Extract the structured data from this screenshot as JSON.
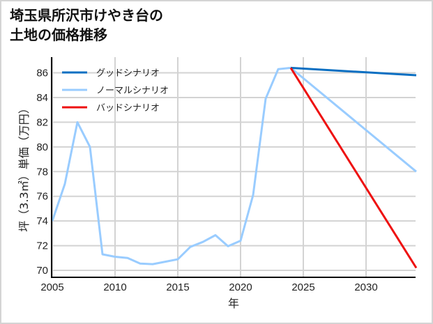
{
  "title_lines": [
    "埼玉県所沢市けやき台の",
    "土地の価格推移"
  ],
  "colors": {
    "good": "#0a6fc2",
    "normal": "#99ccff",
    "bad": "#ee1111",
    "grid": "#d3d3d3",
    "axis": "#000000",
    "frame": "#d4d4d4"
  },
  "chart_data": {
    "type": "line",
    "title": "埼玉県所沢市けやき台の土地の価格推移",
    "xlabel": "年",
    "ylabel": "坪（3.3㎡）単価（万円）",
    "xlim": [
      2005,
      2034
    ],
    "ylim": [
      69.4,
      87.4
    ],
    "x_ticks": [
      2005,
      2010,
      2015,
      2020,
      2025,
      2030
    ],
    "y_ticks": [
      70,
      72,
      74,
      76,
      78,
      80,
      82,
      84,
      86
    ],
    "grid": true,
    "legend_position": "upper left",
    "series": [
      {
        "name": "グッドシナリオ",
        "key": "good",
        "x": [
          2024,
          2034
        ],
        "values": [
          86.4,
          85.8
        ]
      },
      {
        "name": "ノーマルシナリオ",
        "key": "normal",
        "x": [
          2005,
          2006,
          2007,
          2008,
          2009,
          2010,
          2011,
          2012,
          2013,
          2014,
          2015,
          2016,
          2017,
          2018,
          2019,
          2020,
          2021,
          2022,
          2023,
          2024,
          2034
        ],
        "values": [
          74.0,
          77.0,
          82.0,
          80.0,
          71.3,
          71.1,
          71.0,
          70.55,
          70.5,
          70.7,
          70.9,
          71.9,
          72.3,
          72.85,
          71.95,
          72.4,
          76.1,
          83.9,
          86.3,
          86.4,
          78.0
        ]
      },
      {
        "name": "バッドシナリオ",
        "key": "bad",
        "x": [
          2024,
          2034
        ],
        "values": [
          86.4,
          70.2
        ]
      }
    ]
  }
}
